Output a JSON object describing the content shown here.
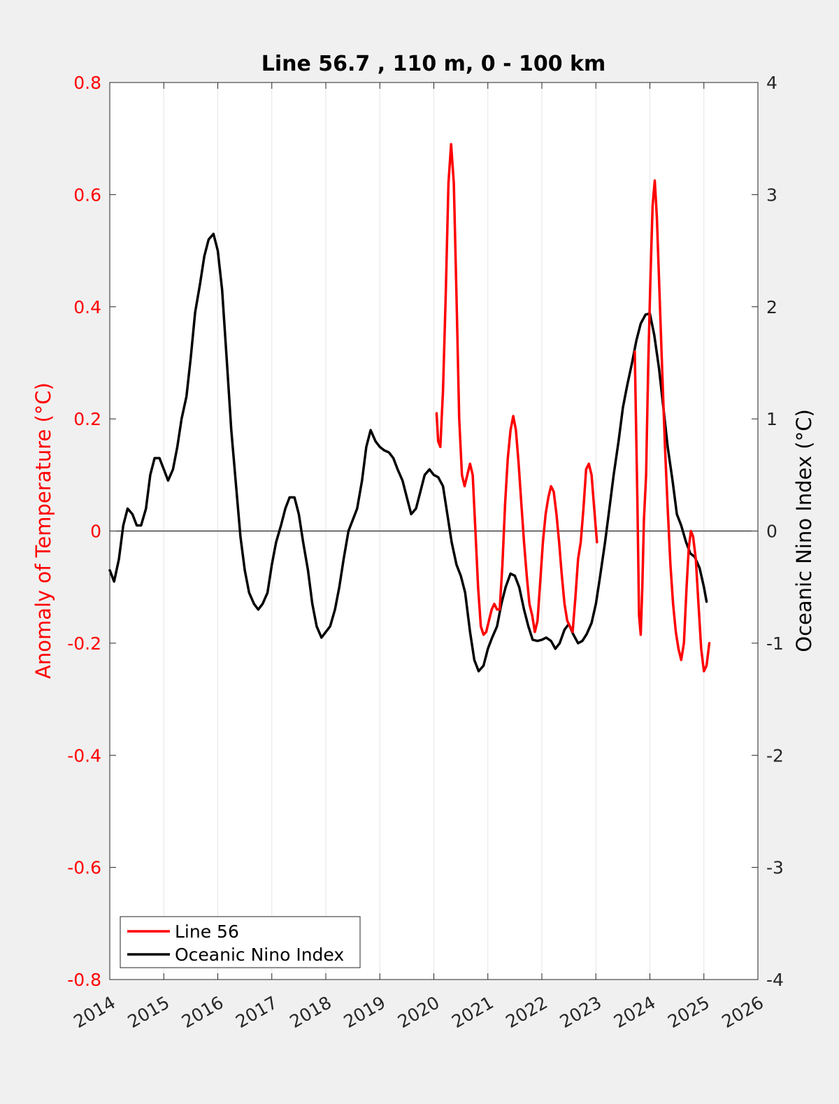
{
  "chart_data": {
    "type": "line",
    "title": "Line 56.7 , 110 m, 0 - 100 km",
    "xlabel": "",
    "ylabel_left": "Anomaly of Temperature (°C)",
    "ylabel_right": "Oceanic Nino Index (°C)",
    "xlim": [
      2014,
      2026
    ],
    "ylim_left": [
      -0.8,
      0.8
    ],
    "ylim_right": [
      -4,
      4
    ],
    "x_ticks": [
      "2014",
      "2015",
      "2016",
      "2017",
      "2018",
      "2019",
      "2020",
      "2021",
      "2022",
      "2023",
      "2024",
      "2025",
      "2026"
    ],
    "y_ticks_left": [
      "0.8",
      "0.6",
      "0.4",
      "0.2",
      "0",
      "-0.2",
      "-0.4",
      "-0.6",
      "-0.8"
    ],
    "y_ticks_right": [
      "4",
      "3",
      "2",
      "1",
      "0",
      "-1",
      "-2",
      "-3",
      "-4"
    ],
    "grid": "vertical",
    "zero_line": true,
    "legend_position": "bottom-left",
    "series": [
      {
        "name": "Line 56",
        "axis": "left",
        "color": "#ff0000",
        "points": [
          [
            2020.05,
            0.21
          ],
          [
            2020.08,
            0.16
          ],
          [
            2020.12,
            0.15
          ],
          [
            2020.17,
            0.25
          ],
          [
            2020.22,
            0.42
          ],
          [
            2020.27,
            0.62
          ],
          [
            2020.32,
            0.69
          ],
          [
            2020.37,
            0.62
          ],
          [
            2020.42,
            0.42
          ],
          [
            2020.47,
            0.2
          ],
          [
            2020.52,
            0.1
          ],
          [
            2020.57,
            0.08
          ],
          [
            2020.62,
            0.1
          ],
          [
            2020.67,
            0.12
          ],
          [
            2020.72,
            0.1
          ],
          [
            2020.77,
            0.0
          ],
          [
            2020.82,
            -0.1
          ],
          [
            2020.87,
            -0.17
          ],
          [
            2020.92,
            -0.185
          ],
          [
            2020.97,
            -0.18
          ],
          [
            2021.02,
            -0.16
          ],
          [
            2021.07,
            -0.14
          ],
          [
            2021.12,
            -0.13
          ],
          [
            2021.17,
            -0.14
          ],
          [
            2021.22,
            -0.14
          ],
          [
            2021.27,
            -0.06
          ],
          [
            2021.32,
            0.05
          ],
          [
            2021.37,
            0.13
          ],
          [
            2021.42,
            0.18
          ],
          [
            2021.47,
            0.205
          ],
          [
            2021.52,
            0.18
          ],
          [
            2021.57,
            0.12
          ],
          [
            2021.62,
            0.05
          ],
          [
            2021.67,
            -0.02
          ],
          [
            2021.72,
            -0.08
          ],
          [
            2021.77,
            -0.13
          ],
          [
            2021.82,
            -0.15
          ],
          [
            2021.87,
            -0.18
          ],
          [
            2021.92,
            -0.16
          ],
          [
            2021.97,
            -0.09
          ],
          [
            2022.02,
            -0.02
          ],
          [
            2022.07,
            0.03
          ],
          [
            2022.12,
            0.06
          ],
          [
            2022.17,
            0.08
          ],
          [
            2022.22,
            0.07
          ],
          [
            2022.27,
            0.03
          ],
          [
            2022.32,
            -0.02
          ],
          [
            2022.37,
            -0.08
          ],
          [
            2022.42,
            -0.13
          ],
          [
            2022.47,
            -0.16
          ],
          [
            2022.52,
            -0.17
          ],
          [
            2022.57,
            -0.18
          ],
          [
            2022.62,
            -0.12
          ],
          [
            2022.67,
            -0.05
          ],
          [
            2022.72,
            -0.02
          ],
          [
            2022.77,
            0.04
          ],
          [
            2022.82,
            0.11
          ],
          [
            2022.87,
            0.12
          ],
          [
            2022.92,
            0.1
          ],
          [
            2022.97,
            0.04
          ],
          [
            2023.02,
            -0.02
          ],
          null,
          [
            2023.72,
            0.32
          ],
          [
            2023.77,
            0.05
          ],
          [
            2023.8,
            -0.15
          ],
          [
            2023.83,
            -0.185
          ],
          [
            2023.86,
            -0.1
          ],
          [
            2023.89,
            0.02
          ],
          [
            2023.93,
            0.1
          ],
          [
            2023.97,
            0.3
          ],
          [
            2024.01,
            0.45
          ],
          [
            2024.05,
            0.58
          ],
          [
            2024.09,
            0.625
          ],
          [
            2024.13,
            0.56
          ],
          [
            2024.18,
            0.42
          ],
          [
            2024.23,
            0.28
          ],
          [
            2024.28,
            0.15
          ],
          [
            2024.33,
            0.04
          ],
          [
            2024.38,
            -0.06
          ],
          [
            2024.43,
            -0.13
          ],
          [
            2024.48,
            -0.18
          ],
          [
            2024.53,
            -0.21
          ],
          [
            2024.58,
            -0.23
          ],
          [
            2024.63,
            -0.2
          ],
          [
            2024.68,
            -0.1
          ],
          [
            2024.72,
            -0.03
          ],
          [
            2024.76,
            0.0
          ],
          [
            2024.8,
            -0.01
          ],
          [
            2024.85,
            -0.05
          ],
          [
            2024.9,
            -0.13
          ],
          [
            2024.95,
            -0.21
          ],
          [
            2025.0,
            -0.25
          ],
          [
            2025.05,
            -0.24
          ],
          [
            2025.1,
            -0.2
          ]
        ]
      },
      {
        "name": "Oceanic Nino Index",
        "axis": "right",
        "color": "#000000",
        "points": [
          [
            2014.0,
            -0.35
          ],
          [
            2014.08,
            -0.45
          ],
          [
            2014.17,
            -0.25
          ],
          [
            2014.25,
            0.05
          ],
          [
            2014.33,
            0.2
          ],
          [
            2014.42,
            0.15
          ],
          [
            2014.5,
            0.05
          ],
          [
            2014.58,
            0.05
          ],
          [
            2014.67,
            0.2
          ],
          [
            2014.75,
            0.5
          ],
          [
            2014.83,
            0.65
          ],
          [
            2014.92,
            0.65
          ],
          [
            2015.0,
            0.55
          ],
          [
            2015.08,
            0.45
          ],
          [
            2015.17,
            0.55
          ],
          [
            2015.25,
            0.75
          ],
          [
            2015.33,
            1.0
          ],
          [
            2015.42,
            1.2
          ],
          [
            2015.5,
            1.55
          ],
          [
            2015.58,
            1.95
          ],
          [
            2015.67,
            2.2
          ],
          [
            2015.75,
            2.45
          ],
          [
            2015.83,
            2.6
          ],
          [
            2015.92,
            2.65
          ],
          [
            2016.0,
            2.5
          ],
          [
            2016.08,
            2.15
          ],
          [
            2016.17,
            1.5
          ],
          [
            2016.25,
            0.9
          ],
          [
            2016.33,
            0.45
          ],
          [
            2016.42,
            -0.05
          ],
          [
            2016.5,
            -0.35
          ],
          [
            2016.58,
            -0.55
          ],
          [
            2016.67,
            -0.65
          ],
          [
            2016.75,
            -0.7
          ],
          [
            2016.83,
            -0.65
          ],
          [
            2016.92,
            -0.55
          ],
          [
            2017.0,
            -0.3
          ],
          [
            2017.08,
            -0.1
          ],
          [
            2017.17,
            0.05
          ],
          [
            2017.25,
            0.2
          ],
          [
            2017.33,
            0.3
          ],
          [
            2017.42,
            0.3
          ],
          [
            2017.5,
            0.15
          ],
          [
            2017.58,
            -0.1
          ],
          [
            2017.67,
            -0.35
          ],
          [
            2017.75,
            -0.65
          ],
          [
            2017.83,
            -0.85
          ],
          [
            2017.92,
            -0.95
          ],
          [
            2018.0,
            -0.9
          ],
          [
            2018.08,
            -0.85
          ],
          [
            2018.17,
            -0.7
          ],
          [
            2018.25,
            -0.5
          ],
          [
            2018.33,
            -0.25
          ],
          [
            2018.42,
            0.0
          ],
          [
            2018.5,
            0.1
          ],
          [
            2018.58,
            0.2
          ],
          [
            2018.67,
            0.45
          ],
          [
            2018.75,
            0.75
          ],
          [
            2018.83,
            0.9
          ],
          [
            2018.92,
            0.8
          ],
          [
            2019.0,
            0.75
          ],
          [
            2019.08,
            0.72
          ],
          [
            2019.17,
            0.7
          ],
          [
            2019.25,
            0.65
          ],
          [
            2019.33,
            0.55
          ],
          [
            2019.42,
            0.45
          ],
          [
            2019.5,
            0.3
          ],
          [
            2019.58,
            0.15
          ],
          [
            2019.67,
            0.2
          ],
          [
            2019.75,
            0.35
          ],
          [
            2019.83,
            0.5
          ],
          [
            2019.92,
            0.55
          ],
          [
            2020.0,
            0.5
          ],
          [
            2020.08,
            0.48
          ],
          [
            2020.17,
            0.4
          ],
          [
            2020.25,
            0.15
          ],
          [
            2020.33,
            -0.1
          ],
          [
            2020.42,
            -0.3
          ],
          [
            2020.5,
            -0.4
          ],
          [
            2020.58,
            -0.55
          ],
          [
            2020.67,
            -0.9
          ],
          [
            2020.75,
            -1.15
          ],
          [
            2020.83,
            -1.25
          ],
          [
            2020.92,
            -1.2
          ],
          [
            2021.0,
            -1.05
          ],
          [
            2021.08,
            -0.95
          ],
          [
            2021.17,
            -0.85
          ],
          [
            2021.25,
            -0.65
          ],
          [
            2021.33,
            -0.5
          ],
          [
            2021.42,
            -0.38
          ],
          [
            2021.5,
            -0.4
          ],
          [
            2021.58,
            -0.5
          ],
          [
            2021.67,
            -0.7
          ],
          [
            2021.75,
            -0.85
          ],
          [
            2021.83,
            -0.97
          ],
          [
            2021.92,
            -0.98
          ],
          [
            2022.0,
            -0.97
          ],
          [
            2022.08,
            -0.95
          ],
          [
            2022.17,
            -0.98
          ],
          [
            2022.25,
            -1.05
          ],
          [
            2022.33,
            -1.0
          ],
          [
            2022.42,
            -0.88
          ],
          [
            2022.5,
            -0.83
          ],
          [
            2022.58,
            -0.92
          ],
          [
            2022.67,
            -1.0
          ],
          [
            2022.75,
            -0.98
          ],
          [
            2022.83,
            -0.92
          ],
          [
            2022.92,
            -0.82
          ],
          [
            2023.0,
            -0.65
          ],
          [
            2023.08,
            -0.4
          ],
          [
            2023.17,
            -0.1
          ],
          [
            2023.25,
            0.2
          ],
          [
            2023.33,
            0.5
          ],
          [
            2023.42,
            0.8
          ],
          [
            2023.5,
            1.1
          ],
          [
            2023.58,
            1.3
          ],
          [
            2023.67,
            1.5
          ],
          [
            2023.75,
            1.7
          ],
          [
            2023.83,
            1.85
          ],
          [
            2023.92,
            1.93
          ],
          [
            2024.0,
            1.94
          ],
          [
            2024.08,
            1.75
          ],
          [
            2024.17,
            1.45
          ],
          [
            2024.25,
            1.1
          ],
          [
            2024.33,
            0.75
          ],
          [
            2024.42,
            0.45
          ],
          [
            2024.5,
            0.15
          ],
          [
            2024.58,
            0.05
          ],
          [
            2024.67,
            -0.1
          ],
          [
            2024.75,
            -0.2
          ],
          [
            2024.83,
            -0.23
          ],
          [
            2024.92,
            -0.33
          ],
          [
            2025.0,
            -0.5
          ],
          [
            2025.05,
            -0.63
          ]
        ]
      }
    ]
  },
  "legend": {
    "items": [
      {
        "label": "Line 56",
        "color": "#ff0000"
      },
      {
        "label": "Oceanic Nino Index",
        "color": "#000000"
      }
    ]
  }
}
